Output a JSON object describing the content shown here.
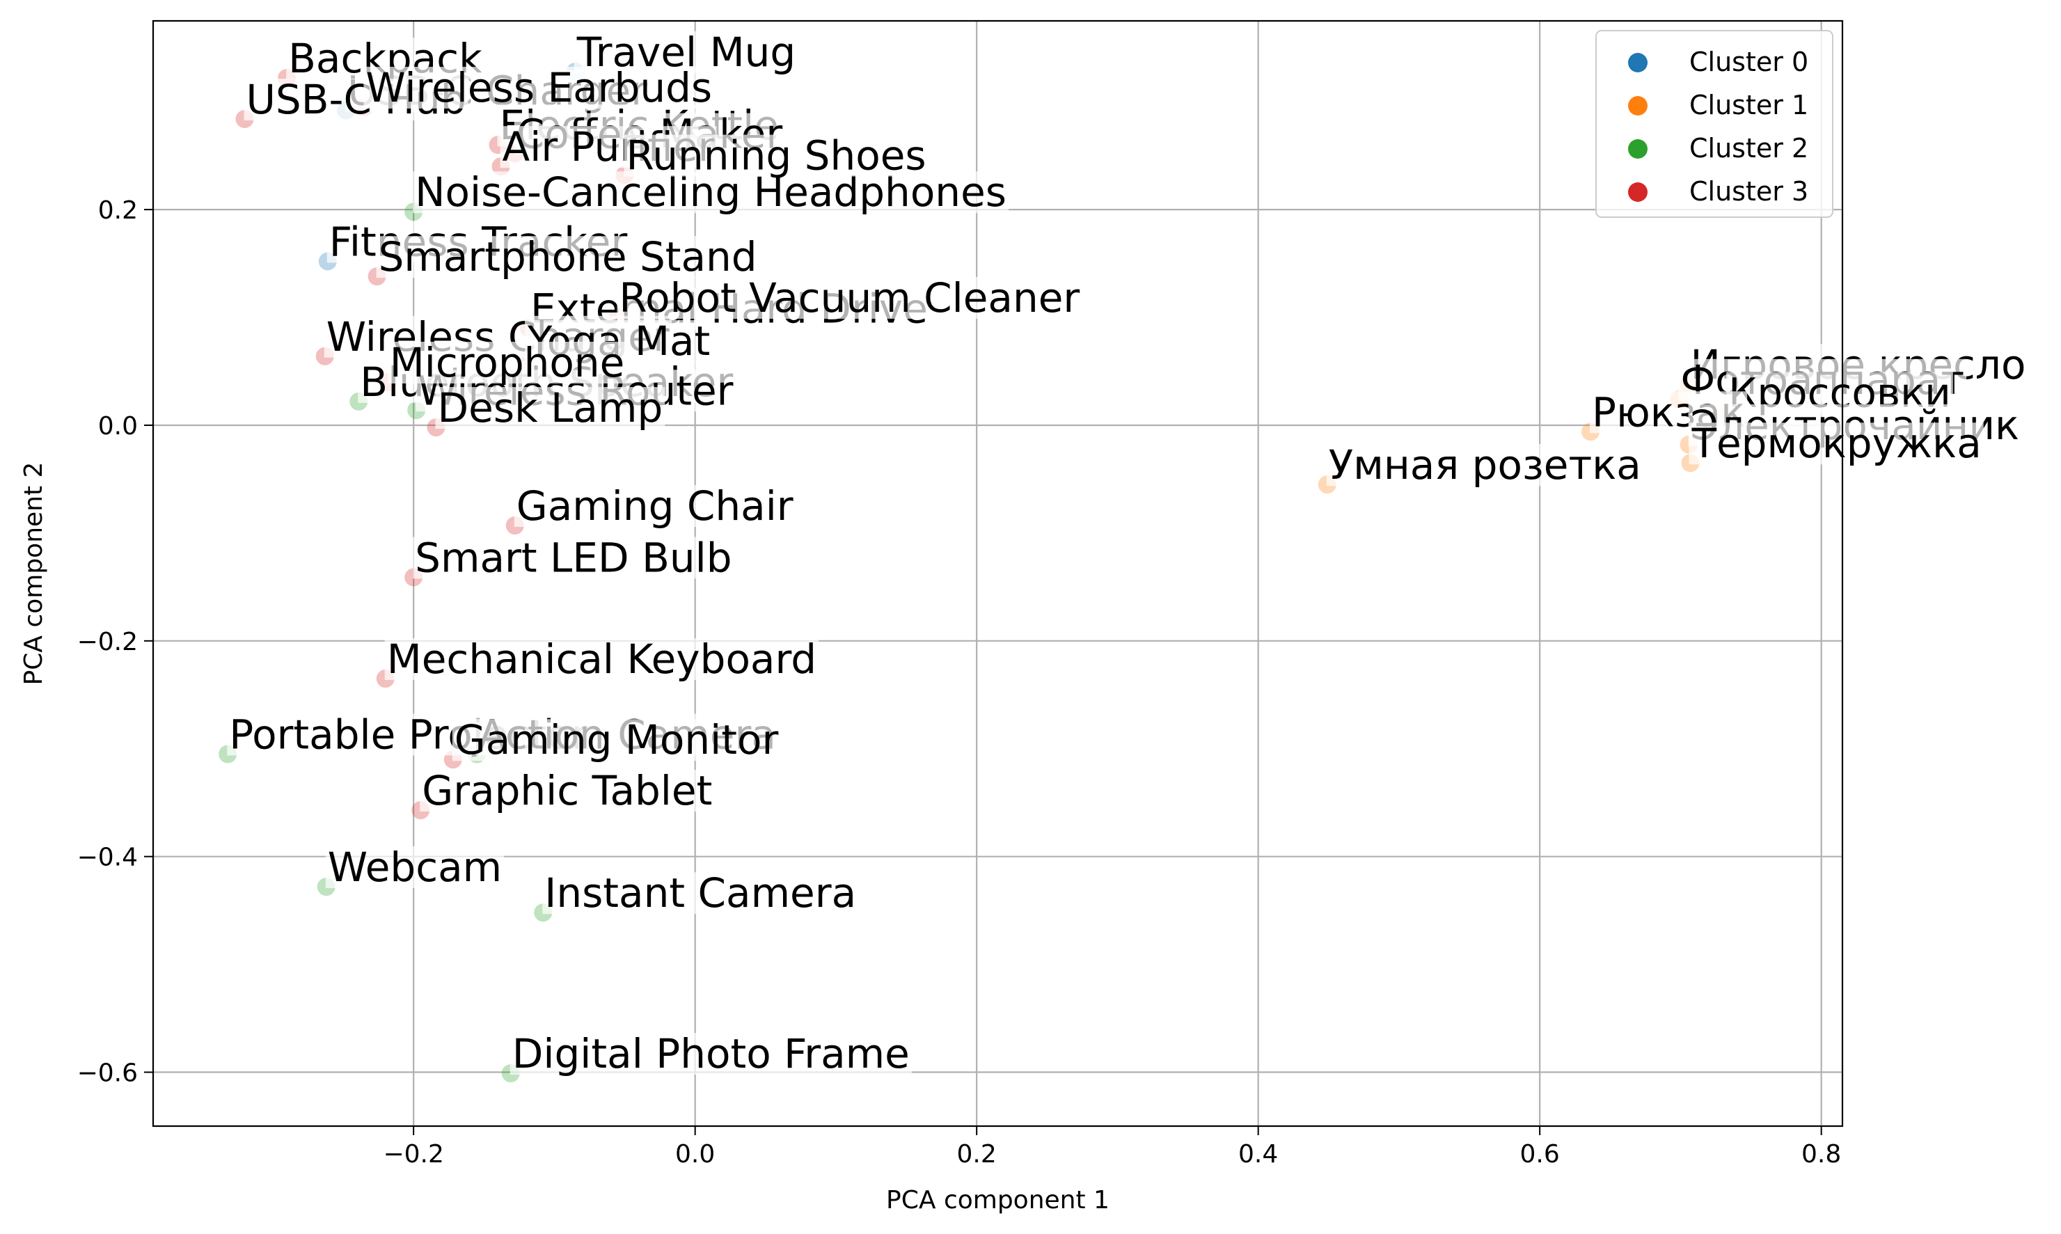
{
  "chart_data": {
    "type": "scatter",
    "title": "",
    "xlabel": "PCA component 1",
    "ylabel": "PCA component 2",
    "xlim": [
      -0.385,
      0.815
    ],
    "ylim": [
      -0.65,
      0.375
    ],
    "xticks": [
      -0.2,
      0.0,
      0.2,
      0.4,
      0.6,
      0.8
    ],
    "xtick_labels": [
      "−0.2",
      "0.0",
      "0.2",
      "0.4",
      "0.6",
      "0.8"
    ],
    "yticks": [
      -0.6,
      -0.4,
      -0.2,
      0.0,
      0.2
    ],
    "ytick_labels": [
      "−0.6",
      "−0.4",
      "−0.2",
      "0.0",
      "0.2"
    ],
    "grid": true,
    "legend_position": "top-right",
    "colors": {
      "Cluster 0": "#1f77b4",
      "Cluster 1": "#ff7f0e",
      "Cluster 2": "#2ca02c",
      "Cluster 3": "#d62728"
    },
    "series": [
      {
        "name": "Cluster 0",
        "points": [
          {
            "label": "Travel Mug",
            "x": -0.085,
            "y": 0.328
          },
          {
            "label": "USB-C Charger",
            "x": -0.248,
            "y": 0.292
          },
          {
            "label": "Fitness Tracker",
            "x": -0.261,
            "y": 0.152
          }
        ]
      },
      {
        "name": "Cluster 1",
        "points": [
          {
            "label": "Игровое кресло",
            "x": 0.706,
            "y": 0.038
          },
          {
            "label": "Фотоаппарат",
            "x": 0.699,
            "y": 0.024
          },
          {
            "label": "Кроссовки",
            "x": 0.733,
            "y": 0.012
          },
          {
            "label": "Рюкзак",
            "x": 0.636,
            "y": -0.006
          },
          {
            "label": "Электрочайник",
            "x": 0.706,
            "y": -0.018
          },
          {
            "label": "Термокружка",
            "x": 0.707,
            "y": -0.035
          },
          {
            "label": "Умная розетка",
            "x": 0.449,
            "y": -0.055
          }
        ]
      },
      {
        "name": "Cluster 2",
        "points": [
          {
            "label": "Noise-Canceling Headphones",
            "x": -0.2,
            "y": 0.198
          },
          {
            "label": "Bluetooth Speaker",
            "x": -0.239,
            "y": 0.022
          },
          {
            "label": "Wireless Router",
            "x": -0.198,
            "y": 0.014
          },
          {
            "label": "Portable Projector",
            "x": -0.332,
            "y": -0.305
          },
          {
            "label": "Webcam",
            "x": -0.262,
            "y": -0.428
          },
          {
            "label": "Instant Camera",
            "x": -0.108,
            "y": -0.452
          },
          {
            "label": "Digital Photo Frame",
            "x": -0.131,
            "y": -0.601
          },
          {
            "label": "Action Camera",
            "x": -0.155,
            "y": -0.305
          }
        ]
      },
      {
        "name": "Cluster 3",
        "points": [
          {
            "label": "Backpack",
            "x": -0.29,
            "y": 0.322
          },
          {
            "label": "USB-C Hub",
            "x": -0.32,
            "y": 0.284
          },
          {
            "label": "Wireless Earbuds",
            "x": -0.235,
            "y": 0.295
          },
          {
            "label": "Electric Kettle",
            "x": -0.14,
            "y": 0.26
          },
          {
            "label": "Coffee Maker",
            "x": -0.128,
            "y": 0.252
          },
          {
            "label": "Air Purifier",
            "x": -0.138,
            "y": 0.24
          },
          {
            "label": "Running Shoes",
            "x": -0.05,
            "y": 0.232
          },
          {
            "label": "Smartphone Stand",
            "x": -0.226,
            "y": 0.138
          },
          {
            "label": "External Hard Drive",
            "x": -0.118,
            "y": 0.09
          },
          {
            "label": "Robot Vacuum Cleaner",
            "x": -0.055,
            "y": 0.1
          },
          {
            "label": "Wireless Charger",
            "x": -0.263,
            "y": 0.064
          },
          {
            "label": "Yoga Mat",
            "x": -0.12,
            "y": 0.06
          },
          {
            "label": "Microphone",
            "x": -0.218,
            "y": 0.04
          },
          {
            "label": "Desk Lamp",
            "x": -0.184,
            "y": -0.002
          },
          {
            "label": "Gaming Chair",
            "x": -0.128,
            "y": -0.093
          },
          {
            "label": "Smart LED Bulb",
            "x": -0.2,
            "y": -0.141
          },
          {
            "label": "Mechanical Keyboard",
            "x": -0.22,
            "y": -0.235
          },
          {
            "label": "Gaming Monitor",
            "x": -0.172,
            "y": -0.31
          },
          {
            "label": "Graphic Tablet",
            "x": -0.195,
            "y": -0.357
          }
        ]
      }
    ]
  }
}
